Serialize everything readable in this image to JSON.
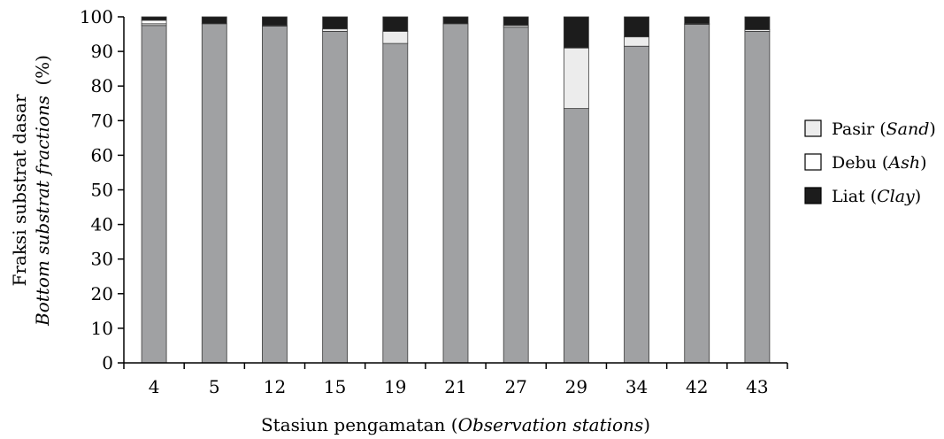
{
  "chart_data": {
    "type": "bar",
    "stacked": true,
    "categories": [
      "4",
      "5",
      "12",
      "15",
      "19",
      "21",
      "27",
      "29",
      "34",
      "42",
      "43"
    ],
    "series": [
      {
        "key": "grey",
        "color": "#a0a1a3",
        "values": [
          97.5,
          98,
          97.3,
          95.8,
          92.3,
          98,
          97,
          73.5,
          91.5,
          97.8,
          95.8
        ]
      },
      {
        "key": "sand",
        "name_main": "Pasir",
        "name_en": "Sand",
        "color": "#ececec",
        "values": [
          0.5,
          0,
          0.2,
          0.7,
          3.5,
          0,
          0.5,
          17.5,
          2.7,
          0.2,
          0.5
        ]
      },
      {
        "key": "ash",
        "name_main": "Debu",
        "name_en": "Ash",
        "color": "#ffffff",
        "values": [
          1.0,
          0,
          0,
          0,
          0,
          0,
          0,
          0,
          0,
          0,
          0
        ]
      },
      {
        "key": "clay",
        "name_main": "Liat",
        "name_en": "Clay",
        "color": "#1c1c1c",
        "values": [
          1.0,
          2.0,
          2.5,
          3.5,
          4.2,
          2.0,
          2.5,
          9.0,
          5.8,
          2.0,
          3.7
        ]
      }
    ],
    "ylim": [
      0,
      100
    ],
    "yticks": [
      0,
      10,
      20,
      30,
      40,
      50,
      60,
      70,
      80,
      90,
      100
    ],
    "ylabel_line1": "Fraksi substrat dasar",
    "ylabel_line2": "Bottom substrat fractions",
    "ylabel_unit": "(%)",
    "xlabel_main": "Stasiun pengamatan ",
    "xlabel_en": "Observation stations",
    "grid": false,
    "legend_position": "right"
  }
}
